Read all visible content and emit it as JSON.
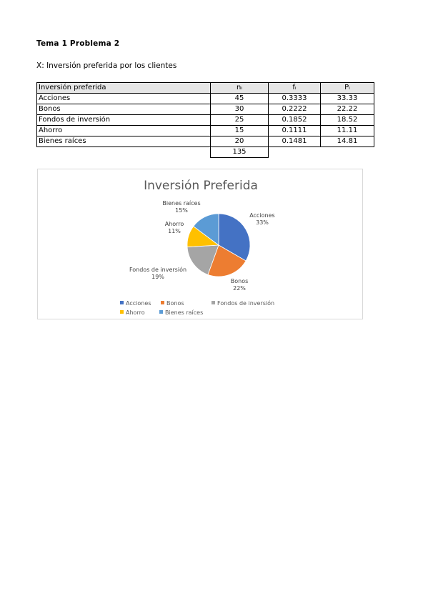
{
  "document": {
    "title": "Tema 1 Problema 2",
    "variable_line": "X: Inversión preferida por los clientes"
  },
  "table": {
    "headers": [
      "Inversión preferida",
      "nᵢ",
      "fᵢ",
      "Pᵢ"
    ],
    "rows": [
      [
        "Acciones",
        "45",
        "0.3333",
        "33.33"
      ],
      [
        "Bonos",
        "30",
        "0.2222",
        "22.22"
      ],
      [
        "Fondos de inversión",
        "25",
        "0.1852",
        "18.52"
      ],
      [
        "Ahorro",
        "15",
        "0.1111",
        "11.11"
      ],
      [
        "Bienes raíces",
        "20",
        "0.1481",
        "14.81"
      ]
    ],
    "total_n": "135"
  },
  "chart_data": {
    "type": "pie",
    "title": "Inversión Preferida",
    "categories": [
      "Acciones",
      "Bonos",
      "Fondos de inversión",
      "Ahorro",
      "Bienes raíces"
    ],
    "values": [
      45,
      30,
      25,
      15,
      20
    ],
    "percent_labels": [
      "33%",
      "22%",
      "19%",
      "11%",
      "15%"
    ],
    "colors": [
      "#4472c4",
      "#ed7d31",
      "#a5a5a5",
      "#ffc000",
      "#5b9bd5"
    ],
    "legend_position": "bottom",
    "start_angle_degrees": 0,
    "direction": "clockwise"
  }
}
